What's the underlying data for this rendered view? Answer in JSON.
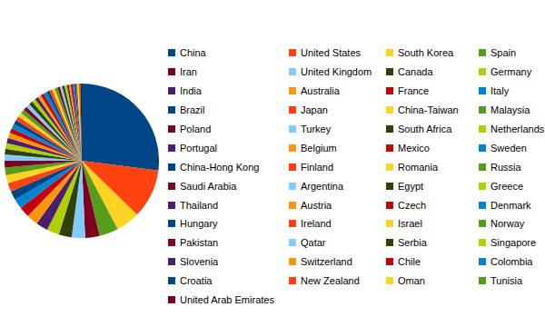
{
  "chart_data": {
    "type": "pie",
    "categories": [
      "China",
      "United States",
      "South Korea",
      "Spain",
      "Iran",
      "United Kingdom",
      "Canada",
      "Germany",
      "India",
      "Australia",
      "France",
      "Italy",
      "Brazil",
      "Japan",
      "China-Taiwan",
      "Malaysia",
      "Poland",
      "Turkey",
      "South Africa",
      "Netherlands",
      "Portugal",
      "Belgium",
      "Mexico",
      "Sweden",
      "China-Hong Kong",
      "Finland",
      "Romania",
      "Russia",
      "Saudi Arabia",
      "Argentina",
      "Egypt",
      "Greece",
      "Thailand",
      "Austria",
      "Czech",
      "Denmark",
      "Hungary",
      "Ireland",
      "Israel",
      "Norway",
      "Pakistan",
      "Qatar",
      "Serbia",
      "Singapore",
      "Slovenia",
      "Switzerland",
      "Chile",
      "Colombia",
      "Croatia",
      "New Zealand",
      "Oman",
      "Tunisia",
      "United Arab Emirates"
    ],
    "values": [
      27,
      10.3,
      5,
      4,
      3,
      2.8,
      2.7,
      2.6,
      2.5,
      2.4,
      2.2,
      2.1,
      1.9,
      1.8,
      1.7,
      1.6,
      1.4,
      1.3,
      1.2,
      1.2,
      1.1,
      1.1,
      1,
      1,
      0.9,
      0.9,
      0.9,
      0.9,
      0.8,
      0.8,
      0.8,
      0.8,
      0.7,
      0.7,
      0.7,
      0.7,
      0.6,
      0.6,
      0.6,
      0.6,
      0.5,
      0.5,
      0.5,
      0.5,
      0.4,
      0.4,
      0.4,
      0.4,
      0.3,
      0.3,
      0.3,
      0.3,
      0.3
    ],
    "colors": [
      "#004586",
      "#ff420e",
      "#ffd320",
      "#579d1c",
      "#7e0021",
      "#83caff",
      "#314004",
      "#aecf00",
      "#4b1f6f",
      "#ff950e",
      "#c5000b",
      "#0084d1",
      "#004586",
      "#ff420e",
      "#ffd320",
      "#579d1c",
      "#7e0021",
      "#83caff",
      "#314004",
      "#aecf00",
      "#4b1f6f",
      "#ff950e",
      "#c5000b",
      "#0084d1",
      "#004586",
      "#ff420e",
      "#ffd320",
      "#579d1c",
      "#7e0021",
      "#83caff",
      "#314004",
      "#aecf00",
      "#4b1f6f",
      "#ff950e",
      "#c5000b",
      "#0084d1",
      "#004586",
      "#ff420e",
      "#ffd320",
      "#579d1c",
      "#7e0021",
      "#83caff",
      "#314004",
      "#aecf00",
      "#4b1f6f",
      "#ff950e",
      "#c5000b",
      "#0084d1",
      "#004586",
      "#ff420e",
      "#ffd320",
      "#579d1c",
      "#7e0021"
    ],
    "legend": "right"
  }
}
